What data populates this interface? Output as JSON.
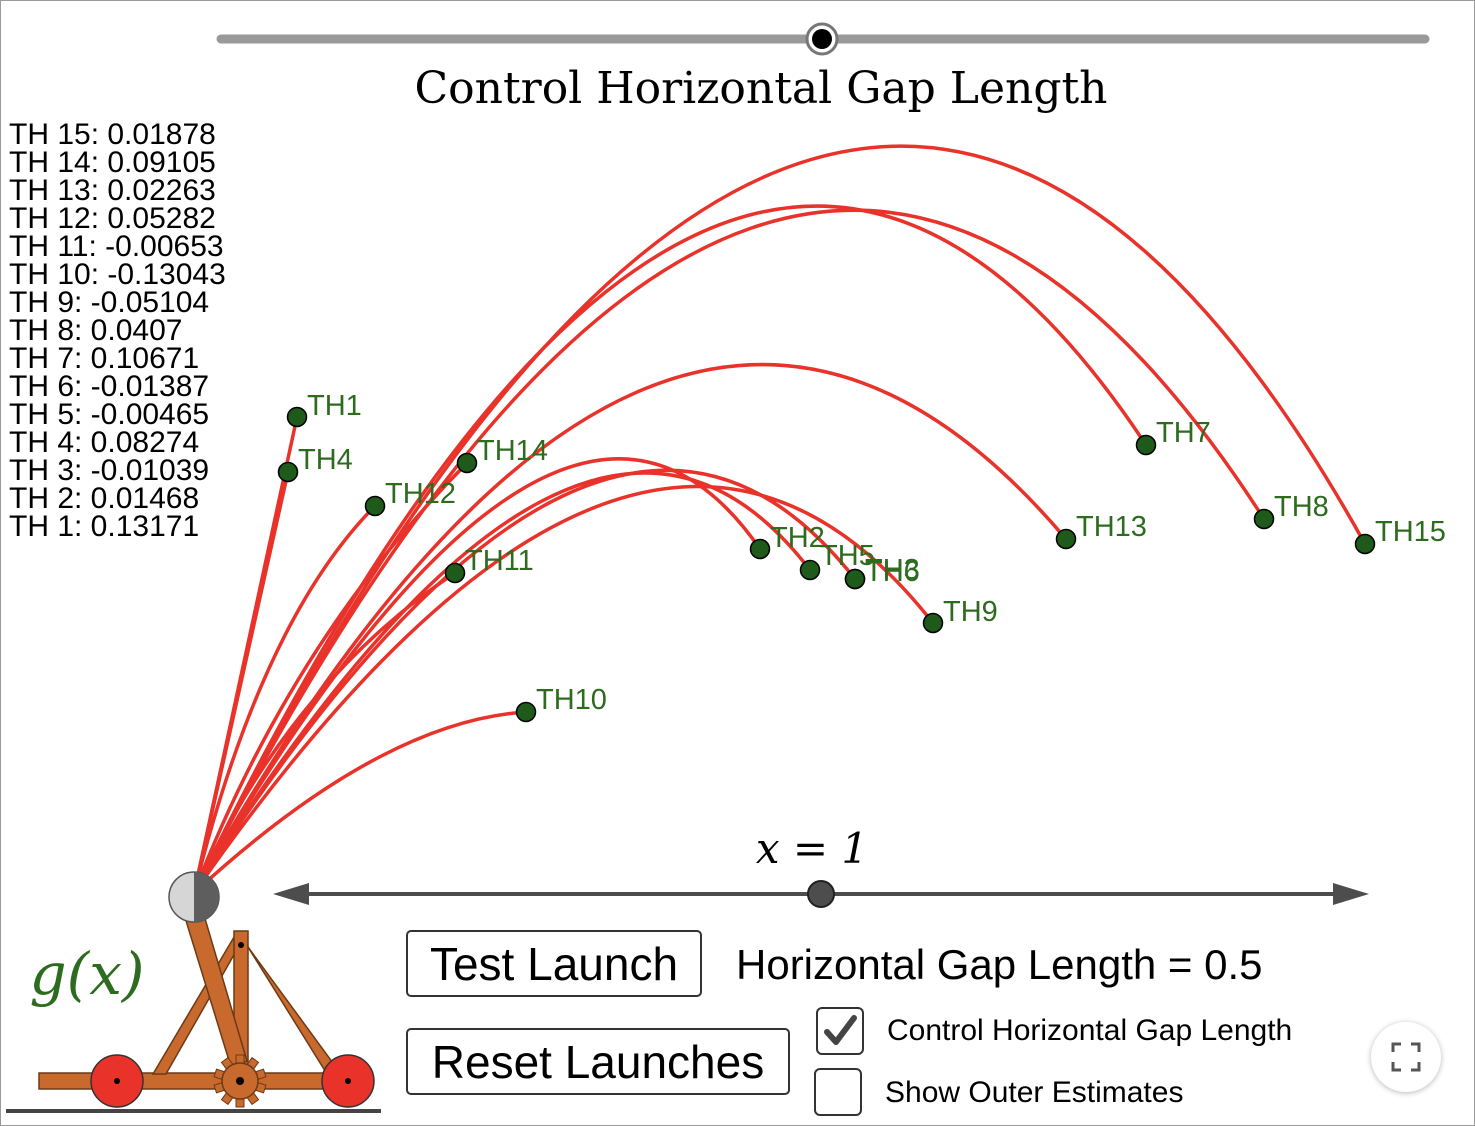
{
  "slider": {
    "title": "Control Horizontal Gap Length"
  },
  "th_values": [
    "TH 15: 0.01878",
    "TH 14: 0.09105",
    "TH 13: 0.02263",
    "TH 12: 0.05282",
    "TH 11: -0.00653",
    "TH 10: -0.13043",
    "TH 9: -0.05104",
    "TH 8: 0.0407",
    "TH 7: 0.10671",
    "TH 6: -0.01387",
    "TH 5: -0.00465",
    "TH 4: 0.08274",
    "TH 3: -0.01039",
    "TH 2: 0.01468",
    "TH 1: 0.13171"
  ],
  "points": [
    "TH1",
    "TH2",
    "TH3",
    "TH4",
    "TH5",
    "TH6",
    "TH7",
    "TH8",
    "TH9",
    "TH10",
    "TH11",
    "TH12",
    "TH13",
    "TH14",
    "TH15"
  ],
  "x_slider": {
    "label": "x = 1",
    "value": 1
  },
  "function_label": "g(x)",
  "buttons": {
    "test_launch": "Test Launch",
    "reset_launches": "Reset Launches"
  },
  "gap_text": "Horizontal Gap Length = 0.5",
  "checkboxes": {
    "control_gap": {
      "label": "Control Horizontal Gap Length",
      "checked": true
    },
    "outer_estimates": {
      "label": "Show Outer Estimates",
      "checked": false
    }
  },
  "colors": {
    "trajectory": "#e8322a",
    "point_fill": "#1e5a1a",
    "point_label": "#2d6b1f",
    "wood": "#c8692e",
    "wheel": "#e8322a",
    "slider_track": "#999999",
    "axis": "#4d4d4d"
  },
  "icons": {
    "fullscreen": "fullscreen-icon",
    "checkmark": "checkmark-icon"
  }
}
